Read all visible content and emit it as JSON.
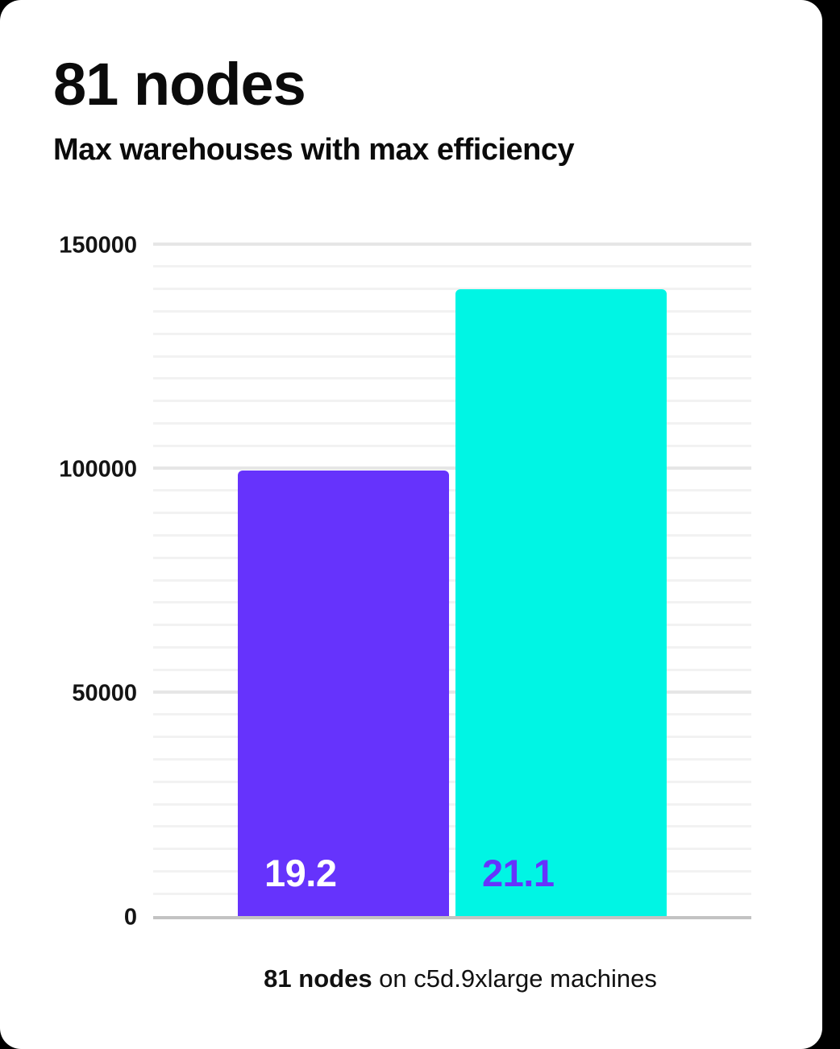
{
  "page": {
    "background_color": "#000000",
    "card_color": "#ffffff"
  },
  "header": {
    "title": "81 nodes",
    "subtitle": "Max warehouses with max efficiency"
  },
  "caption": {
    "bold_part": "81 nodes",
    "rest": " on c5d.9xlarge machines"
  },
  "chart_data": {
    "type": "bar",
    "title": "81 nodes",
    "subtitle": "Max warehouses with max efficiency",
    "xlabel": "",
    "ylabel": "",
    "ylim": [
      0,
      150000
    ],
    "grid": true,
    "legend": false,
    "gridline_step_minor": 5000,
    "gridline_step_major": 50000,
    "yticks": [
      {
        "value": 0,
        "label": "0"
      },
      {
        "value": 50000,
        "label": "50000"
      },
      {
        "value": 100000,
        "label": "100000"
      },
      {
        "value": 150000,
        "label": "150000"
      }
    ],
    "series": [
      {
        "name": "purple-bar",
        "value": 99500,
        "label": "19.2",
        "color": "#6633fc",
        "label_color": "#ffffff"
      },
      {
        "name": "cyan-bar",
        "value": 140000,
        "label": "21.1",
        "color": "#00f5e4",
        "label_color": "#6633fc"
      }
    ]
  }
}
